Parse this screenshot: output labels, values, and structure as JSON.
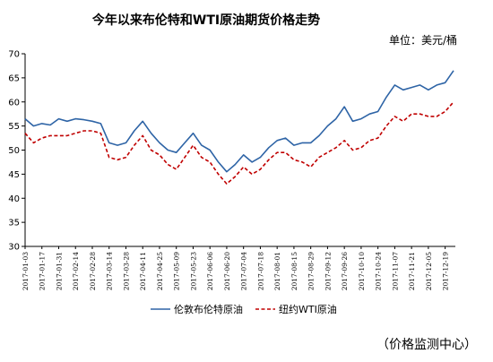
{
  "chart_data": {
    "type": "line",
    "title": "今年以来布伦特和WTI原油期货价格走势",
    "unit": "单位：美元/桶",
    "source": "（价格监测中心）",
    "legend_position": "bottom",
    "grid": false,
    "ylim": [
      30,
      70
    ],
    "yticks": [
      30,
      35,
      40,
      45,
      50,
      55,
      60,
      65,
      70
    ],
    "x_ticks": [
      "2017-01-03",
      "2017-01-17",
      "2017-01-31",
      "2017-02-14",
      "2017-02-28",
      "2017-03-14",
      "2017-03-28",
      "2017-04-11",
      "2017-04-25",
      "2017-05-09",
      "2017-05-23",
      "2017-06-06",
      "2017-06-20",
      "2017-07-04",
      "2017-07-18",
      "2017-08-01",
      "2017-08-15",
      "2017-08-29",
      "2017-09-12",
      "2017-09-26",
      "2017-10-10",
      "2017-10-24",
      "2017-11-07",
      "2017-11-21",
      "2017-12-05",
      "2017-12-19"
    ],
    "series": [
      {
        "name": "伦敦布伦特原油",
        "color": "#2E64A6",
        "style": "solid",
        "x": [
          "2017-01-03",
          "2017-01-10",
          "2017-01-17",
          "2017-01-24",
          "2017-01-31",
          "2017-02-07",
          "2017-02-14",
          "2017-02-21",
          "2017-02-28",
          "2017-03-07",
          "2017-03-14",
          "2017-03-21",
          "2017-03-28",
          "2017-04-04",
          "2017-04-11",
          "2017-04-18",
          "2017-04-25",
          "2017-05-02",
          "2017-05-09",
          "2017-05-16",
          "2017-05-23",
          "2017-05-30",
          "2017-06-06",
          "2017-06-13",
          "2017-06-20",
          "2017-06-27",
          "2017-07-04",
          "2017-07-11",
          "2017-07-18",
          "2017-07-25",
          "2017-08-01",
          "2017-08-08",
          "2017-08-15",
          "2017-08-22",
          "2017-08-29",
          "2017-09-05",
          "2017-09-12",
          "2017-09-19",
          "2017-09-26",
          "2017-10-03",
          "2017-10-10",
          "2017-10-17",
          "2017-10-24",
          "2017-10-31",
          "2017-11-07",
          "2017-11-14",
          "2017-11-21",
          "2017-11-28",
          "2017-12-05",
          "2017-12-12",
          "2017-12-19",
          "2017-12-26"
        ],
        "values": [
          56.5,
          55.0,
          55.5,
          55.2,
          56.5,
          56.0,
          56.5,
          56.3,
          56.0,
          55.5,
          51.5,
          51.0,
          51.5,
          54.0,
          56.0,
          53.5,
          51.5,
          50.0,
          49.5,
          51.5,
          53.5,
          51.0,
          50.0,
          47.5,
          45.5,
          47.0,
          49.0,
          47.5,
          48.5,
          50.5,
          52.0,
          52.5,
          51.0,
          51.5,
          51.5,
          53.0,
          55.0,
          56.5,
          59.0,
          56.0,
          56.5,
          57.5,
          58.0,
          61.0,
          63.5,
          62.5,
          63.0,
          63.5,
          62.5,
          63.5,
          64.0,
          66.5
        ]
      },
      {
        "name": "纽约WTI原油",
        "color": "#C00000",
        "style": "dashed",
        "x": [
          "2017-01-03",
          "2017-01-10",
          "2017-01-17",
          "2017-01-24",
          "2017-01-31",
          "2017-02-07",
          "2017-02-14",
          "2017-02-21",
          "2017-02-28",
          "2017-03-07",
          "2017-03-14",
          "2017-03-21",
          "2017-03-28",
          "2017-04-04",
          "2017-04-11",
          "2017-04-18",
          "2017-04-25",
          "2017-05-02",
          "2017-05-09",
          "2017-05-16",
          "2017-05-23",
          "2017-05-30",
          "2017-06-06",
          "2017-06-13",
          "2017-06-20",
          "2017-06-27",
          "2017-07-04",
          "2017-07-11",
          "2017-07-18",
          "2017-07-25",
          "2017-08-01",
          "2017-08-08",
          "2017-08-15",
          "2017-08-22",
          "2017-08-29",
          "2017-09-05",
          "2017-09-12",
          "2017-09-19",
          "2017-09-26",
          "2017-10-03",
          "2017-10-10",
          "2017-10-17",
          "2017-10-24",
          "2017-10-31",
          "2017-11-07",
          "2017-11-14",
          "2017-11-21",
          "2017-11-28",
          "2017-12-05",
          "2017-12-12",
          "2017-12-19",
          "2017-12-26"
        ],
        "values": [
          53.5,
          51.5,
          52.5,
          53.0,
          53.0,
          53.0,
          53.5,
          54.0,
          54.0,
          53.5,
          48.5,
          48.0,
          48.5,
          51.0,
          53.0,
          50.0,
          49.0,
          47.0,
          46.0,
          48.5,
          51.0,
          48.5,
          47.5,
          45.0,
          43.0,
          44.5,
          46.5,
          45.0,
          46.0,
          48.0,
          49.5,
          49.5,
          48.0,
          47.5,
          46.5,
          48.5,
          49.5,
          50.5,
          52.0,
          50.0,
          50.5,
          52.0,
          52.5,
          55.0,
          57.0,
          56.0,
          57.5,
          57.5,
          57.0,
          57.0,
          58.0,
          60.0
        ]
      }
    ]
  }
}
